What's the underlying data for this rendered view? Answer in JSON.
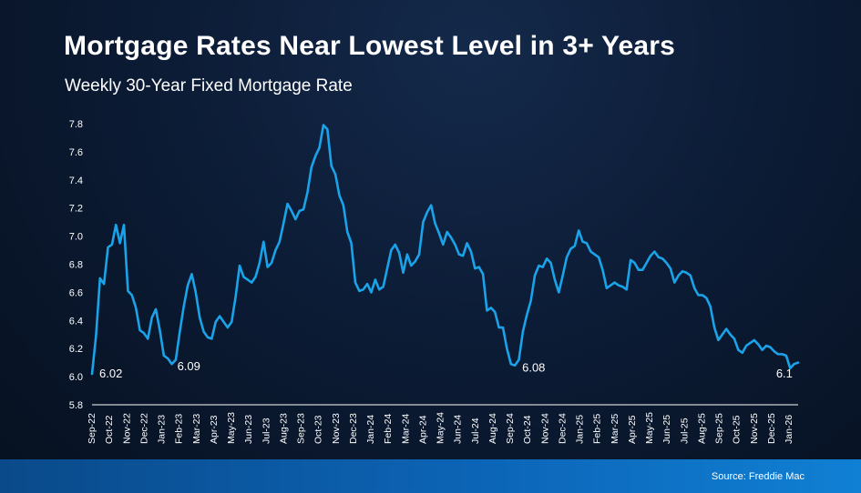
{
  "title": "Mortgage Rates Near Lowest Level in 3+ Years",
  "subtitle": "Weekly 30-Year Fixed Mortgage Rate",
  "source": "Source: Freddie Mac",
  "colors": {
    "line": "#1aa3e8",
    "text": "#ffffff",
    "axis": "#ffffff"
  },
  "chart_data": {
    "type": "line",
    "title": "Mortgage Rates Near Lowest Level in 3+ Years",
    "subtitle": "Weekly 30-Year Fixed Mortgage Rate",
    "xlabel": "",
    "ylabel": "",
    "ylim": [
      5.8,
      7.8
    ],
    "yticks": [
      "7.8",
      "7.6",
      "7.4",
      "7.2",
      "7.0",
      "6.8",
      "6.6",
      "6.4",
      "6.2",
      "6.0",
      "5.8"
    ],
    "grid": false,
    "x_tick_labels": [
      "Sep-22",
      "Oct-22",
      "Nov-22",
      "Dec-22",
      "Jan-23",
      "Feb-23",
      "Mar-23",
      "Apr-23",
      "May-23",
      "Jun-23",
      "Jul-23",
      "Aug-23",
      "Sep-23",
      "Oct-23",
      "Nov-23",
      "Dec-23",
      "Jan-24",
      "Feb-24",
      "Mar-24",
      "Apr-24",
      "May-24",
      "Jun-24",
      "Jul-24",
      "Aug-24",
      "Sep-24",
      "Oct-24",
      "Nov-24",
      "Dec-24",
      "Jan-25",
      "Feb-25",
      "Mar-25",
      "Apr-25",
      "May-25",
      "Jun-25",
      "Jul-25",
      "Aug-25",
      "Sep-25",
      "Oct-25",
      "Nov-25",
      "Dec-25",
      "Jan-26"
    ],
    "series": [
      {
        "name": "30-Year Fixed Rate",
        "values": [
          6.02,
          6.29,
          6.7,
          6.66,
          6.92,
          6.94,
          7.08,
          6.95,
          7.08,
          6.61,
          6.58,
          6.49,
          6.33,
          6.31,
          6.27,
          6.42,
          6.48,
          6.33,
          6.15,
          6.13,
          6.09,
          6.12,
          6.32,
          6.5,
          6.65,
          6.73,
          6.6,
          6.42,
          6.32,
          6.28,
          6.27,
          6.39,
          6.43,
          6.39,
          6.35,
          6.39,
          6.57,
          6.79,
          6.71,
          6.69,
          6.67,
          6.71,
          6.81,
          6.96,
          6.78,
          6.81,
          6.9,
          6.96,
          7.09,
          7.23,
          7.18,
          7.12,
          7.18,
          7.19,
          7.31,
          7.49,
          7.57,
          7.63,
          7.79,
          7.76,
          7.5,
          7.44,
          7.29,
          7.22,
          7.03,
          6.95,
          6.67,
          6.61,
          6.62,
          6.66,
          6.6,
          6.69,
          6.62,
          6.64,
          6.77,
          6.9,
          6.94,
          6.88,
          6.74,
          6.87,
          6.79,
          6.82,
          6.87,
          7.1,
          7.17,
          7.22,
          7.09,
          7.02,
          6.94,
          7.03,
          6.99,
          6.94,
          6.87,
          6.86,
          6.95,
          6.89,
          6.77,
          6.78,
          6.73,
          6.47,
          6.49,
          6.46,
          6.35,
          6.35,
          6.2,
          6.09,
          6.08,
          6.12,
          6.32,
          6.44,
          6.54,
          6.72,
          6.79,
          6.78,
          6.84,
          6.81,
          6.69,
          6.6,
          6.72,
          6.85,
          6.91,
          6.93,
          7.04,
          6.96,
          6.95,
          6.89,
          6.87,
          6.85,
          6.76,
          6.63,
          6.65,
          6.67,
          6.65,
          6.64,
          6.62,
          6.83,
          6.81,
          6.76,
          6.76,
          6.81,
          6.86,
          6.89,
          6.85,
          6.84,
          6.81,
          6.77,
          6.67,
          6.72,
          6.75,
          6.74,
          6.72,
          6.63,
          6.58,
          6.58,
          6.56,
          6.5,
          6.35,
          6.26,
          6.3,
          6.34,
          6.3,
          6.27,
          6.19,
          6.17,
          6.22,
          6.24,
          6.26,
          6.23,
          6.19,
          6.22,
          6.21,
          6.18,
          6.16,
          6.16,
          6.15,
          6.06,
          6.09,
          6.1
        ]
      }
    ],
    "annotations": [
      {
        "label": "6.02",
        "index": 0
      },
      {
        "label": "6.09",
        "index": 20
      },
      {
        "label": "6.08",
        "index": 106
      },
      {
        "label": "6.1",
        "index": 174
      }
    ]
  }
}
